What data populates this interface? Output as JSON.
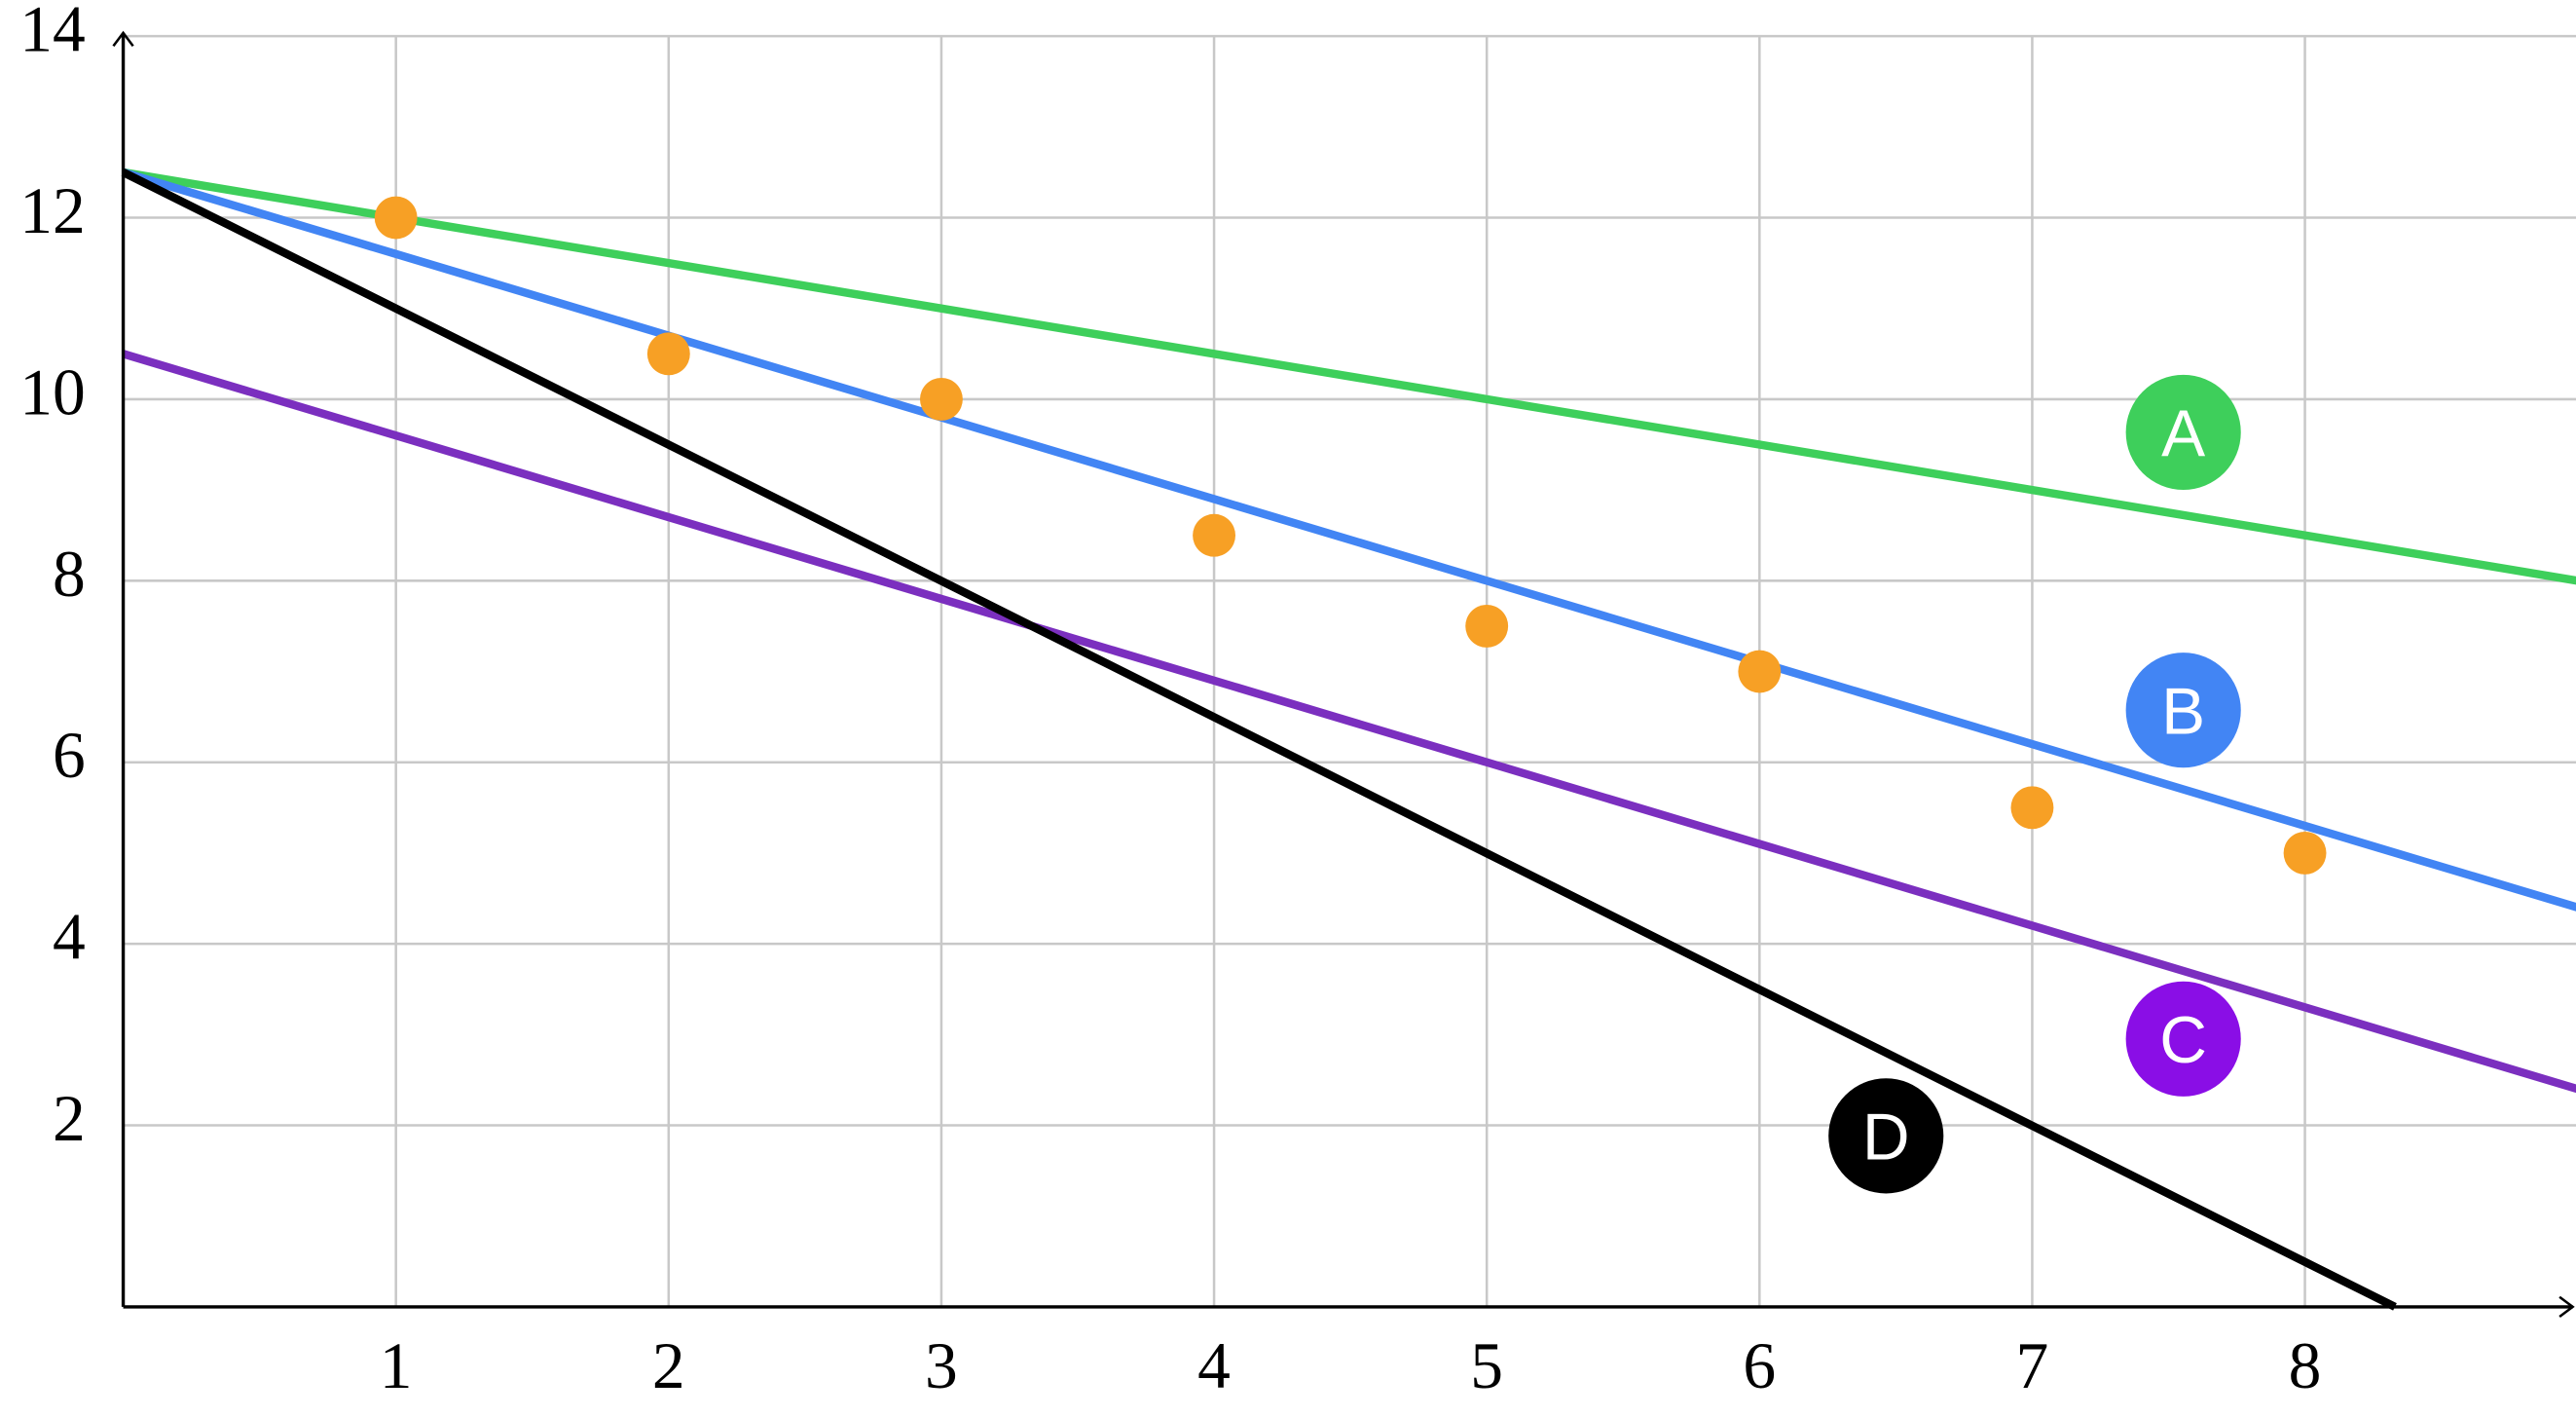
{
  "chart_data": {
    "type": "line",
    "xlim": [
      0,
      9
    ],
    "ylim": [
      0,
      14
    ],
    "xticks": [
      1,
      2,
      3,
      4,
      5,
      6,
      7,
      8
    ],
    "yticks": [
      2,
      4,
      6,
      8,
      10,
      12,
      14
    ],
    "grid": true,
    "series": [
      {
        "name": "A",
        "color": "#3ecf5b",
        "x": [
          0,
          9
        ],
        "values": [
          12.5,
          8
        ]
      },
      {
        "name": "B",
        "color": "#4285f4",
        "x": [
          0,
          9
        ],
        "values": [
          12.5,
          4.4
        ]
      },
      {
        "name": "C",
        "color": "#7b2fbf",
        "badge_color": "#8a0ee6",
        "x": [
          0,
          9
        ],
        "values": [
          10.5,
          2.4
        ]
      },
      {
        "name": "D",
        "color": "#000000",
        "x": [
          0,
          8.33
        ],
        "values": [
          12.5,
          0
        ]
      }
    ],
    "scatter": {
      "color": "#f7a025",
      "x": [
        1,
        2,
        3,
        4,
        5,
        6,
        7,
        8
      ],
      "values": [
        12,
        10.5,
        10,
        8.5,
        7.5,
        7,
        5.5,
        5
      ]
    }
  }
}
